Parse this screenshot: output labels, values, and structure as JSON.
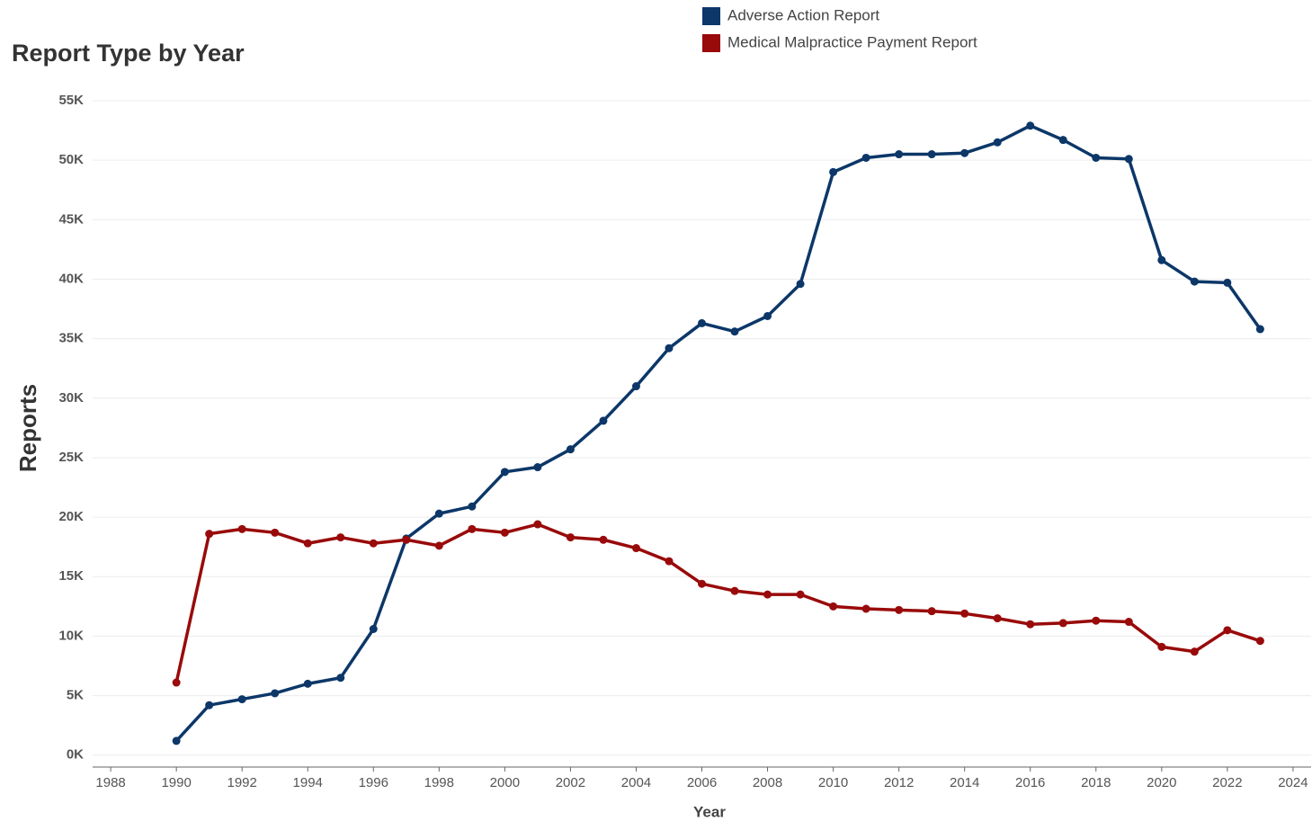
{
  "chart_data": {
    "type": "line",
    "title": "Report Type by Year",
    "xlabel": "Year",
    "ylabel": "Reports",
    "x": [
      1990,
      1991,
      1992,
      1993,
      1994,
      1995,
      1996,
      1997,
      1998,
      1999,
      2000,
      2001,
      2002,
      2003,
      2004,
      2005,
      2006,
      2007,
      2008,
      2009,
      2010,
      2011,
      2012,
      2013,
      2014,
      2015,
      2016,
      2017,
      2018,
      2019,
      2020,
      2021,
      2022,
      2023
    ],
    "series": [
      {
        "name": "Adverse Action Report",
        "color": "#0c3768",
        "values": [
          1200,
          4200,
          4700,
          5200,
          6000,
          6500,
          10600,
          18200,
          20300,
          20900,
          23800,
          24200,
          25700,
          28100,
          31000,
          34200,
          36300,
          35600,
          36900,
          39600,
          49000,
          50200,
          50500,
          50500,
          50600,
          51500,
          52900,
          51700,
          50200,
          50100,
          41600,
          39800,
          39700,
          35800
        ]
      },
      {
        "name": "Medical Malpractice Payment Report",
        "color": "#990a0a",
        "values": [
          6100,
          18600,
          19000,
          18700,
          17800,
          18300,
          17800,
          18100,
          17600,
          19000,
          18700,
          19400,
          18300,
          18100,
          17400,
          16300,
          14400,
          13800,
          13500,
          13500,
          12500,
          12300,
          12200,
          12100,
          11900,
          11500,
          11000,
          11100,
          11300,
          11200,
          9100,
          8700,
          10500,
          9600
        ]
      }
    ],
    "xlim": [
      1987.45,
      2024.55
    ],
    "xticks": [
      1988,
      1990,
      1992,
      1994,
      1996,
      1998,
      2000,
      2002,
      2004,
      2006,
      2008,
      2010,
      2012,
      2014,
      2016,
      2018,
      2020,
      2022,
      2024
    ],
    "ylim": [
      -1000,
      55300
    ],
    "yticks": [
      {
        "value": 0,
        "label": "0K"
      },
      {
        "value": 5000,
        "label": "5K"
      },
      {
        "value": 10000,
        "label": "10K"
      },
      {
        "value": 15000,
        "label": "15K"
      },
      {
        "value": 20000,
        "label": "20K"
      },
      {
        "value": 25000,
        "label": "25K"
      },
      {
        "value": 30000,
        "label": "30K"
      },
      {
        "value": 35000,
        "label": "35K"
      },
      {
        "value": 40000,
        "label": "40K"
      },
      {
        "value": 45000,
        "label": "45K"
      },
      {
        "value": 50000,
        "label": "50K"
      },
      {
        "value": 55000,
        "label": "55K"
      }
    ],
    "grid": true,
    "legend": "top"
  }
}
